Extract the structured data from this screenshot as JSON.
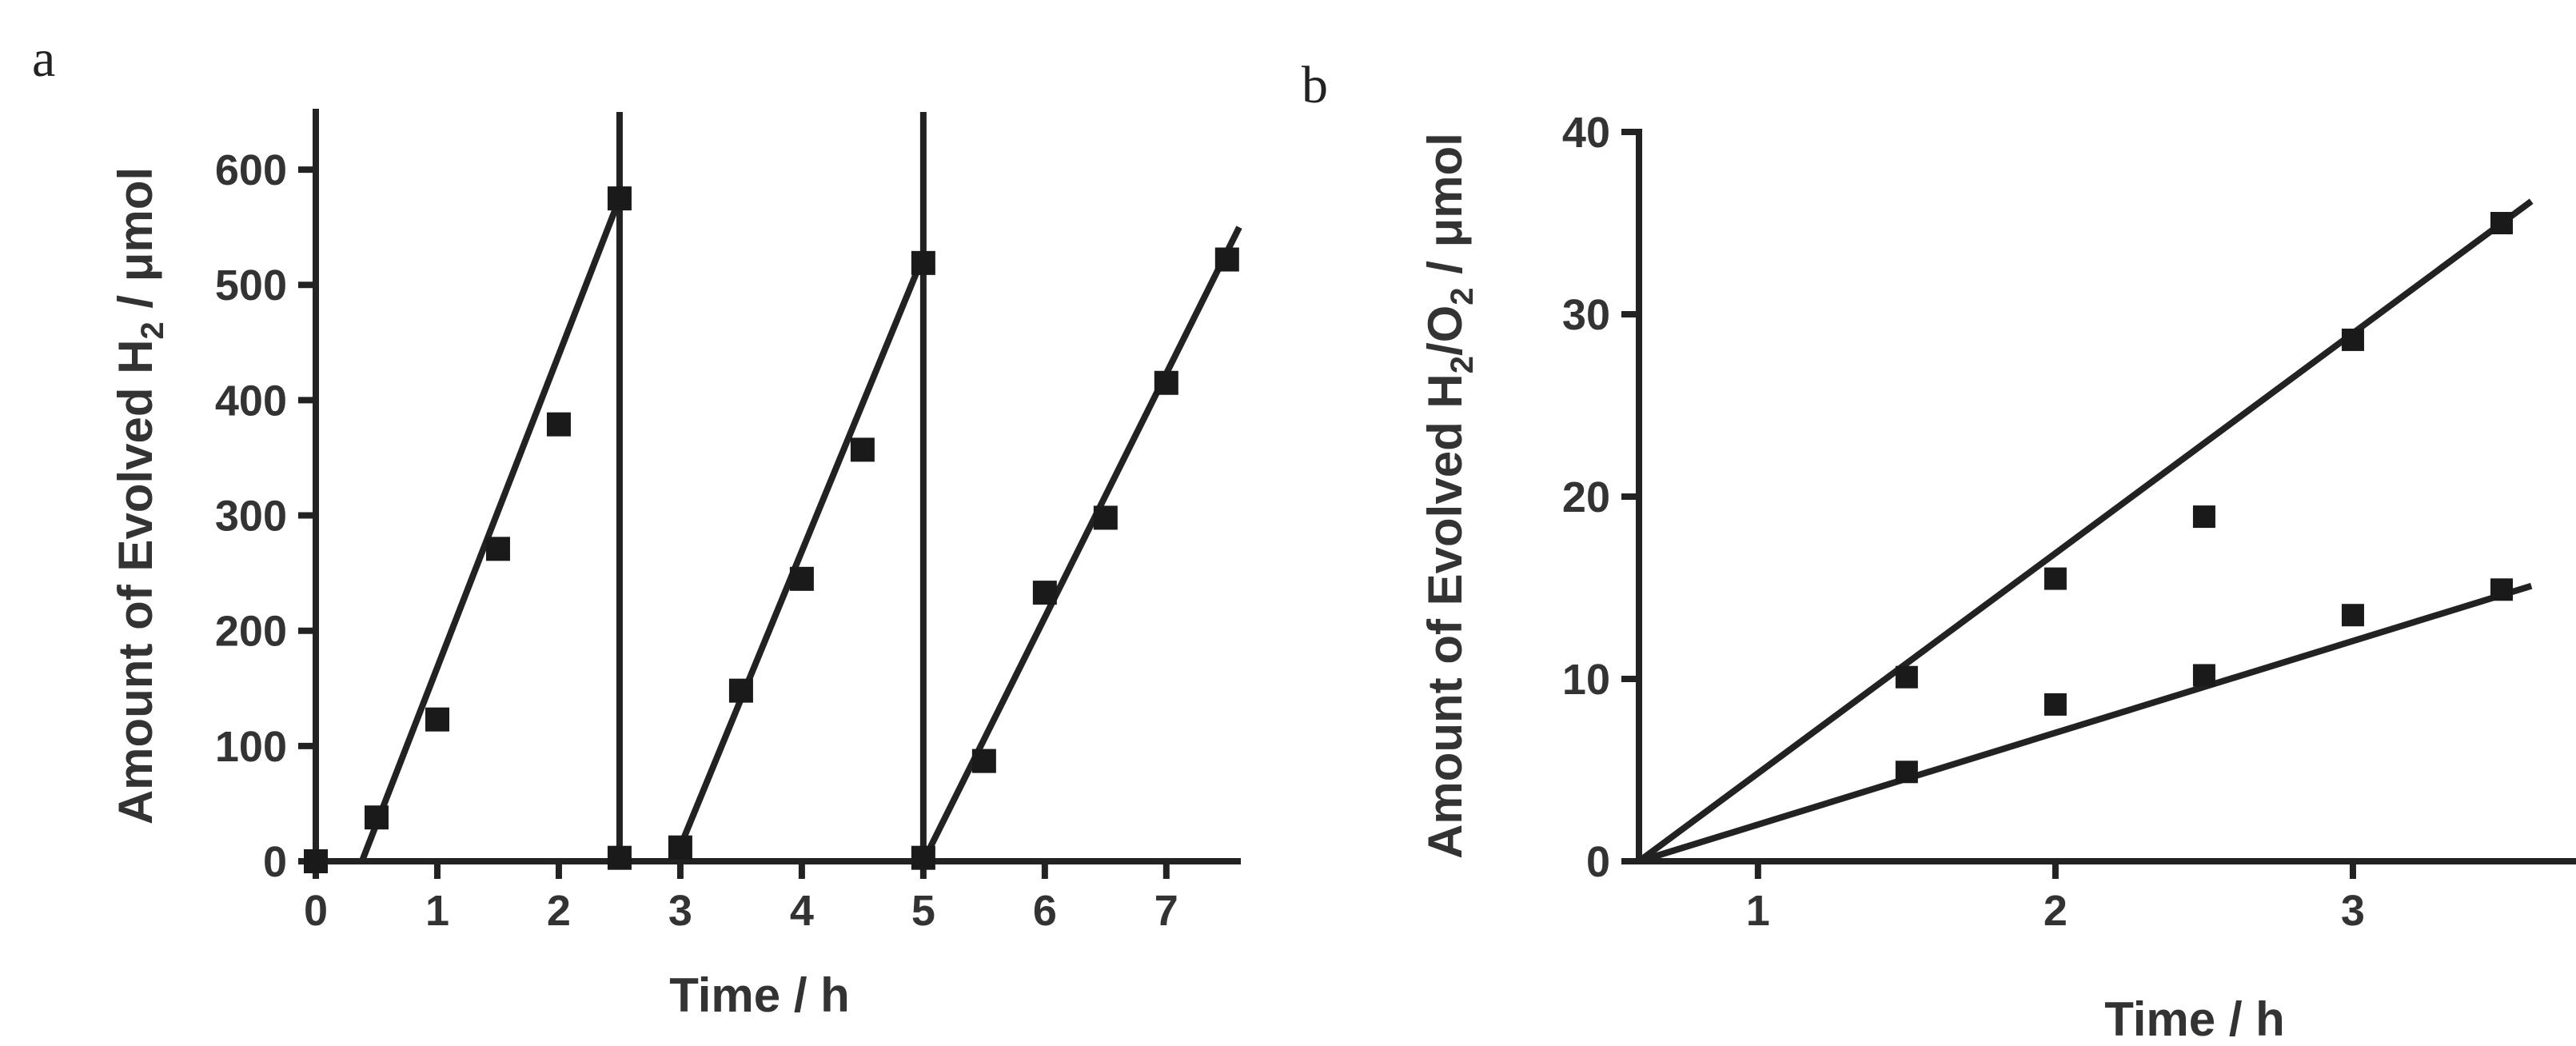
{
  "chart_data": [
    {
      "panel": "a",
      "type": "scatter",
      "xlabel": "Time / h",
      "ylabel": {
        "main": "Amount of Evolved H",
        "sub": "2",
        "tail": " / μmol"
      },
      "xlim": [
        0,
        7.6
      ],
      "ylim": [
        0,
        650
      ],
      "xticks": [
        0,
        1,
        2,
        3,
        4,
        5,
        6,
        7
      ],
      "yticks": [
        0,
        100,
        200,
        300,
        400,
        500,
        600
      ],
      "series": [
        {
          "name": "H2",
          "x": [
            0,
            0.5,
            1.0,
            1.5,
            2.0,
            2.5,
            2.5,
            3.0,
            3.5,
            4.0,
            4.5,
            5.0,
            5.0,
            5.5,
            6.0,
            6.5,
            7.0,
            7.5
          ],
          "y": [
            0,
            38,
            123,
            271,
            379,
            575,
            3,
            12,
            148,
            245,
            357,
            519,
            3,
            87,
            233,
            298,
            415,
            522
          ]
        }
      ],
      "fit_lines": [
        {
          "x": [
            0.38,
            2.5
          ],
          "y": [
            0,
            575
          ]
        },
        {
          "x": [
            2.5,
            2.5
          ],
          "y": [
            0,
            650
          ]
        },
        {
          "x": [
            2.95,
            5.0
          ],
          "y": [
            0,
            525
          ]
        },
        {
          "x": [
            5.0,
            5.0
          ],
          "y": [
            0,
            650
          ]
        },
        {
          "x": [
            5.0,
            7.6
          ],
          "y": [
            0,
            550
          ]
        }
      ],
      "baseline": {
        "x": [
          0,
          7.6
        ],
        "y": [
          0,
          0
        ]
      }
    },
    {
      "panel": "b",
      "type": "scatter",
      "xlabel": "Time / h",
      "ylabel": {
        "main": "Amount of Evolved H",
        "sub": "2",
        "mid": "/O",
        "sub2": "2",
        "tail": " / μmol"
      },
      "xlim": [
        0.6,
        3.75
      ],
      "ylim": [
        0,
        40
      ],
      "xticks": [
        1,
        2,
        3
      ],
      "yticks": [
        0,
        10,
        20,
        30,
        40
      ],
      "series": [
        {
          "name": "H2",
          "x": [
            1.5,
            2.0,
            2.5,
            3.0,
            3.5
          ],
          "y": [
            10.1,
            15.5,
            18.9,
            28.6,
            35.0
          ]
        },
        {
          "name": "O2",
          "x": [
            1.5,
            2.0,
            2.5,
            3.0,
            3.5
          ],
          "y": [
            4.9,
            8.6,
            10.2,
            13.5,
            14.9
          ]
        }
      ],
      "fit_lines": [
        {
          "x": [
            0.6,
            3.6
          ],
          "y": [
            0,
            36.2
          ]
        },
        {
          "x": [
            0.6,
            3.6
          ],
          "y": [
            0,
            15.1
          ]
        }
      ]
    }
  ]
}
